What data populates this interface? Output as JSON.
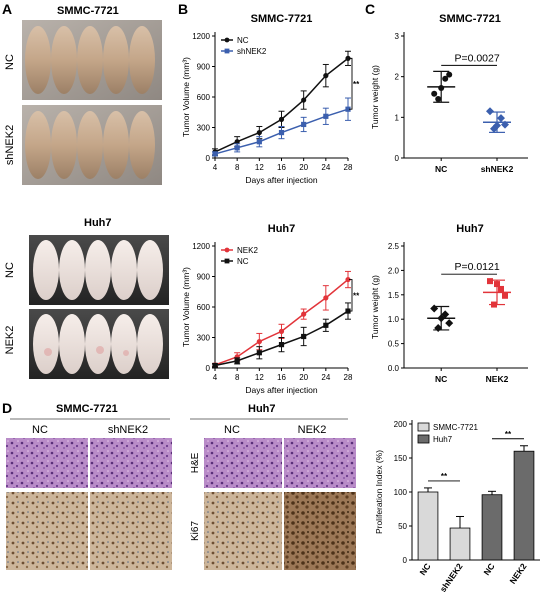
{
  "panel_labels": {
    "A": "A",
    "B": "B",
    "C": "C",
    "D": "D"
  },
  "panel_a": {
    "smmc_title": "SMMC-7721",
    "huh7_title": "Huh7",
    "row_nc": "NC",
    "row_shnek2": "shNEK2",
    "row_nc2": "NC",
    "row_nek2": "NEK2"
  },
  "panel_d": {
    "smmc_title": "SMMC-7721",
    "huh7_title": "Huh7",
    "col_nc": "NC",
    "col_shnek2": "shNEK2",
    "col_nc2": "NC",
    "col_nek2": "NEK2",
    "row_he": "H&E",
    "row_ki67": "Ki67"
  },
  "colors": {
    "black": "#111111",
    "blue": "#3b5fae",
    "red": "#e2343a",
    "light_gray": "#d9d9d9",
    "dark_gray": "#6b6b6b",
    "purple": "#a879b8",
    "brown": "#8a6a48"
  },
  "chart_data": [
    {
      "id": "b_top",
      "type": "line",
      "title": "SMMC-7721",
      "xlabel": "Days after injection",
      "ylabel": "Tumor Volume (mm³)",
      "x": [
        4,
        8,
        12,
        16,
        20,
        24,
        28
      ],
      "xticks": [
        "4",
        "8",
        "12",
        "16",
        "20",
        "24",
        "28"
      ],
      "yticks": [
        "0",
        "300",
        "600",
        "900",
        "1200"
      ],
      "ylim": [
        0,
        1200
      ],
      "series": [
        {
          "name": "NC",
          "color": "#111111",
          "marker": "circle",
          "values": [
            60,
            160,
            250,
            380,
            570,
            810,
            980
          ],
          "errors": [
            30,
            50,
            60,
            80,
            90,
            110,
            70
          ]
        },
        {
          "name": "shNEK2",
          "color": "#3b5fae",
          "marker": "square",
          "values": [
            40,
            100,
            160,
            250,
            330,
            410,
            480
          ],
          "errors": [
            20,
            40,
            50,
            60,
            70,
            80,
            110
          ]
        }
      ],
      "significance": "**"
    },
    {
      "id": "b_bottom",
      "type": "line",
      "title": "Huh7",
      "xlabel": "Days after injection",
      "ylabel": "Tumor Volume (mm³)",
      "x": [
        4,
        8,
        12,
        16,
        20,
        24,
        28
      ],
      "xticks": [
        "4",
        "8",
        "12",
        "16",
        "20",
        "24",
        "28"
      ],
      "yticks": [
        "0",
        "300",
        "600",
        "900",
        "1200"
      ],
      "ylim": [
        0,
        1200
      ],
      "series": [
        {
          "name": "NEK2",
          "color": "#e2343a",
          "marker": "circle",
          "values": [
            30,
            110,
            260,
            360,
            530,
            690,
            870
          ],
          "errors": [
            15,
            40,
            80,
            70,
            50,
            120,
            80
          ]
        },
        {
          "name": "NC",
          "color": "#111111",
          "marker": "square",
          "values": [
            25,
            70,
            150,
            230,
            310,
            420,
            560
          ],
          "errors": [
            15,
            30,
            60,
            70,
            90,
            60,
            80
          ]
        }
      ],
      "significance": "**"
    },
    {
      "id": "c_top",
      "type": "scatter",
      "title": "SMMC-7721",
      "ylabel": "Tumor weight (g)",
      "categories": [
        "NC",
        "shNEK2"
      ],
      "yticks": [
        "0",
        "1",
        "2",
        "3"
      ],
      "ylim": [
        0,
        3
      ],
      "groups": [
        {
          "name": "NC",
          "color": "#111111",
          "marker": "circle",
          "points": [
            1.58,
            1.95,
            2.05,
            1.45,
            1.72
          ],
          "mean": 1.75,
          "sd": 0.38
        },
        {
          "name": "shNEK2",
          "color": "#3b5fae",
          "marker": "diamond",
          "points": [
            1.15,
            0.98,
            0.82,
            0.72,
            0.8
          ],
          "mean": 0.88,
          "sd": 0.25
        }
      ],
      "annotation": "P=0.0027"
    },
    {
      "id": "c_bottom",
      "type": "scatter",
      "title": "Huh7",
      "ylabel": "Tumor weight (g)",
      "categories": [
        "NC",
        "NEK2"
      ],
      "yticks": [
        "0.0",
        "0.5",
        "1.0",
        "1.5",
        "2.0",
        "2.5"
      ],
      "ylim": [
        0,
        2.5
      ],
      "groups": [
        {
          "name": "NC",
          "color": "#111111",
          "marker": "diamond",
          "points": [
            1.22,
            1.1,
            0.92,
            0.82,
            1.02
          ],
          "mean": 1.02,
          "sd": 0.24
        },
        {
          "name": "NEK2",
          "color": "#e2343a",
          "marker": "square",
          "points": [
            1.78,
            1.62,
            1.48,
            1.3,
            1.72
          ],
          "mean": 1.55,
          "sd": 0.25
        }
      ],
      "annotation": "P=0.0121"
    },
    {
      "id": "d_bar",
      "type": "bar",
      "ylabel": "Proliferation Index (%)",
      "categories": [
        "NC",
        "shNEK2",
        "NC",
        "NEK2"
      ],
      "yticks": [
        "0",
        "50",
        "100",
        "150",
        "200"
      ],
      "ylim": [
        0,
        200
      ],
      "series": [
        {
          "name": "SMMC-7721",
          "color": "#d9d9d9"
        },
        {
          "name": "Huh7",
          "color": "#6b6b6b"
        }
      ],
      "values": [
        100,
        47,
        96,
        160
      ],
      "errors": [
        6,
        17,
        5,
        8
      ],
      "bar_series": [
        0,
        0,
        1,
        1
      ],
      "significance": [
        "**",
        "**"
      ]
    }
  ]
}
